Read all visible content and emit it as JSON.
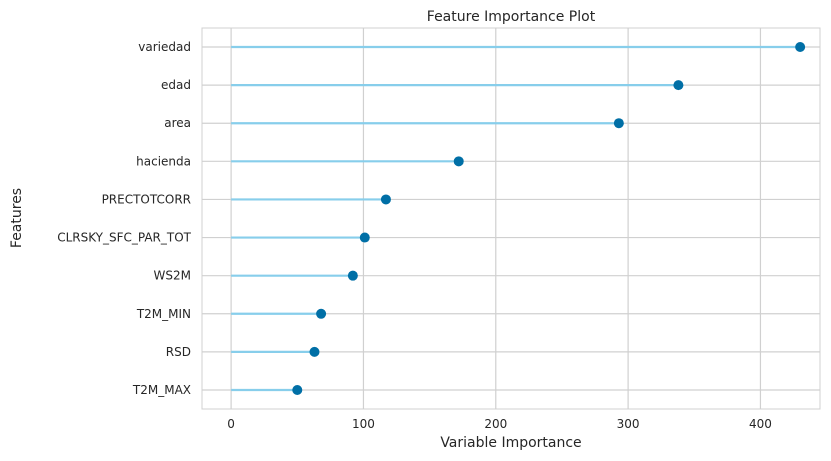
{
  "chart_data": {
    "type": "lollipop",
    "title": "Feature Importance Plot",
    "xlabel": "Variable Importance",
    "ylabel": "Features",
    "xlim": [
      -22,
      445
    ],
    "xticks": [
      0,
      100,
      200,
      300,
      400
    ],
    "grid": true,
    "categories": [
      "variedad",
      "edad",
      "area",
      "hacienda",
      "PRECTOTCORR",
      "CLRSKY_SFC_PAR_TOT",
      "WS2M",
      "T2M_MIN",
      "RSD",
      "T2M_MAX"
    ],
    "values": [
      430,
      338,
      293,
      172,
      117,
      101,
      92,
      68,
      63,
      50
    ],
    "colors": {
      "stem": "#87ceeb",
      "marker": "#006fa6",
      "grid": "#d0d0d0",
      "frame": "#d0d0d0"
    }
  }
}
